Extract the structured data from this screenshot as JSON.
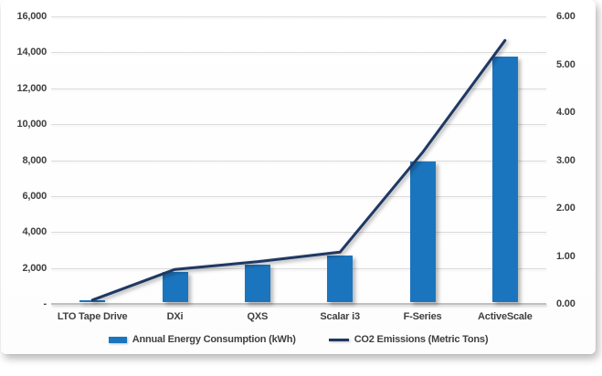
{
  "chart_data": {
    "type": "combo-bar-line",
    "title": "",
    "categories": [
      "LTO Tape Drive",
      "DXi",
      "QXS",
      "Scalar i3",
      "F-Series",
      "ActiveScale"
    ],
    "series": [
      {
        "name": "Annual Energy Consumption (kWh)",
        "type": "bar",
        "axis": "left",
        "color": "#1B75BE",
        "values": [
          200,
          1800,
          2200,
          2700,
          7900,
          13750
        ]
      },
      {
        "name": "CO2 Emissions (Metric Tons)",
        "type": "line",
        "axis": "right",
        "color": "#1F3864",
        "values": [
          0.08,
          0.72,
          0.88,
          1.08,
          3.16,
          5.5
        ]
      }
    ],
    "left_axis": {
      "min": 0,
      "max": 16000,
      "step": 2000,
      "tick_labels": [
        "-",
        "2,000",
        "4,000",
        "6,000",
        "8,000",
        "10,000",
        "12,000",
        "14,000",
        "16,000"
      ]
    },
    "right_axis": {
      "min": 0,
      "max": 6,
      "step": 1,
      "tick_labels": [
        "0.00",
        "1.00",
        "2.00",
        "3.00",
        "4.00",
        "5.00",
        "6.00"
      ]
    },
    "grid": true,
    "legend_position": "bottom"
  },
  "style": {
    "grid_color": "#D9D9D9",
    "axis_line_color": "#C0C0C0",
    "label_color": "#404040",
    "background": "#FFFFFF"
  }
}
